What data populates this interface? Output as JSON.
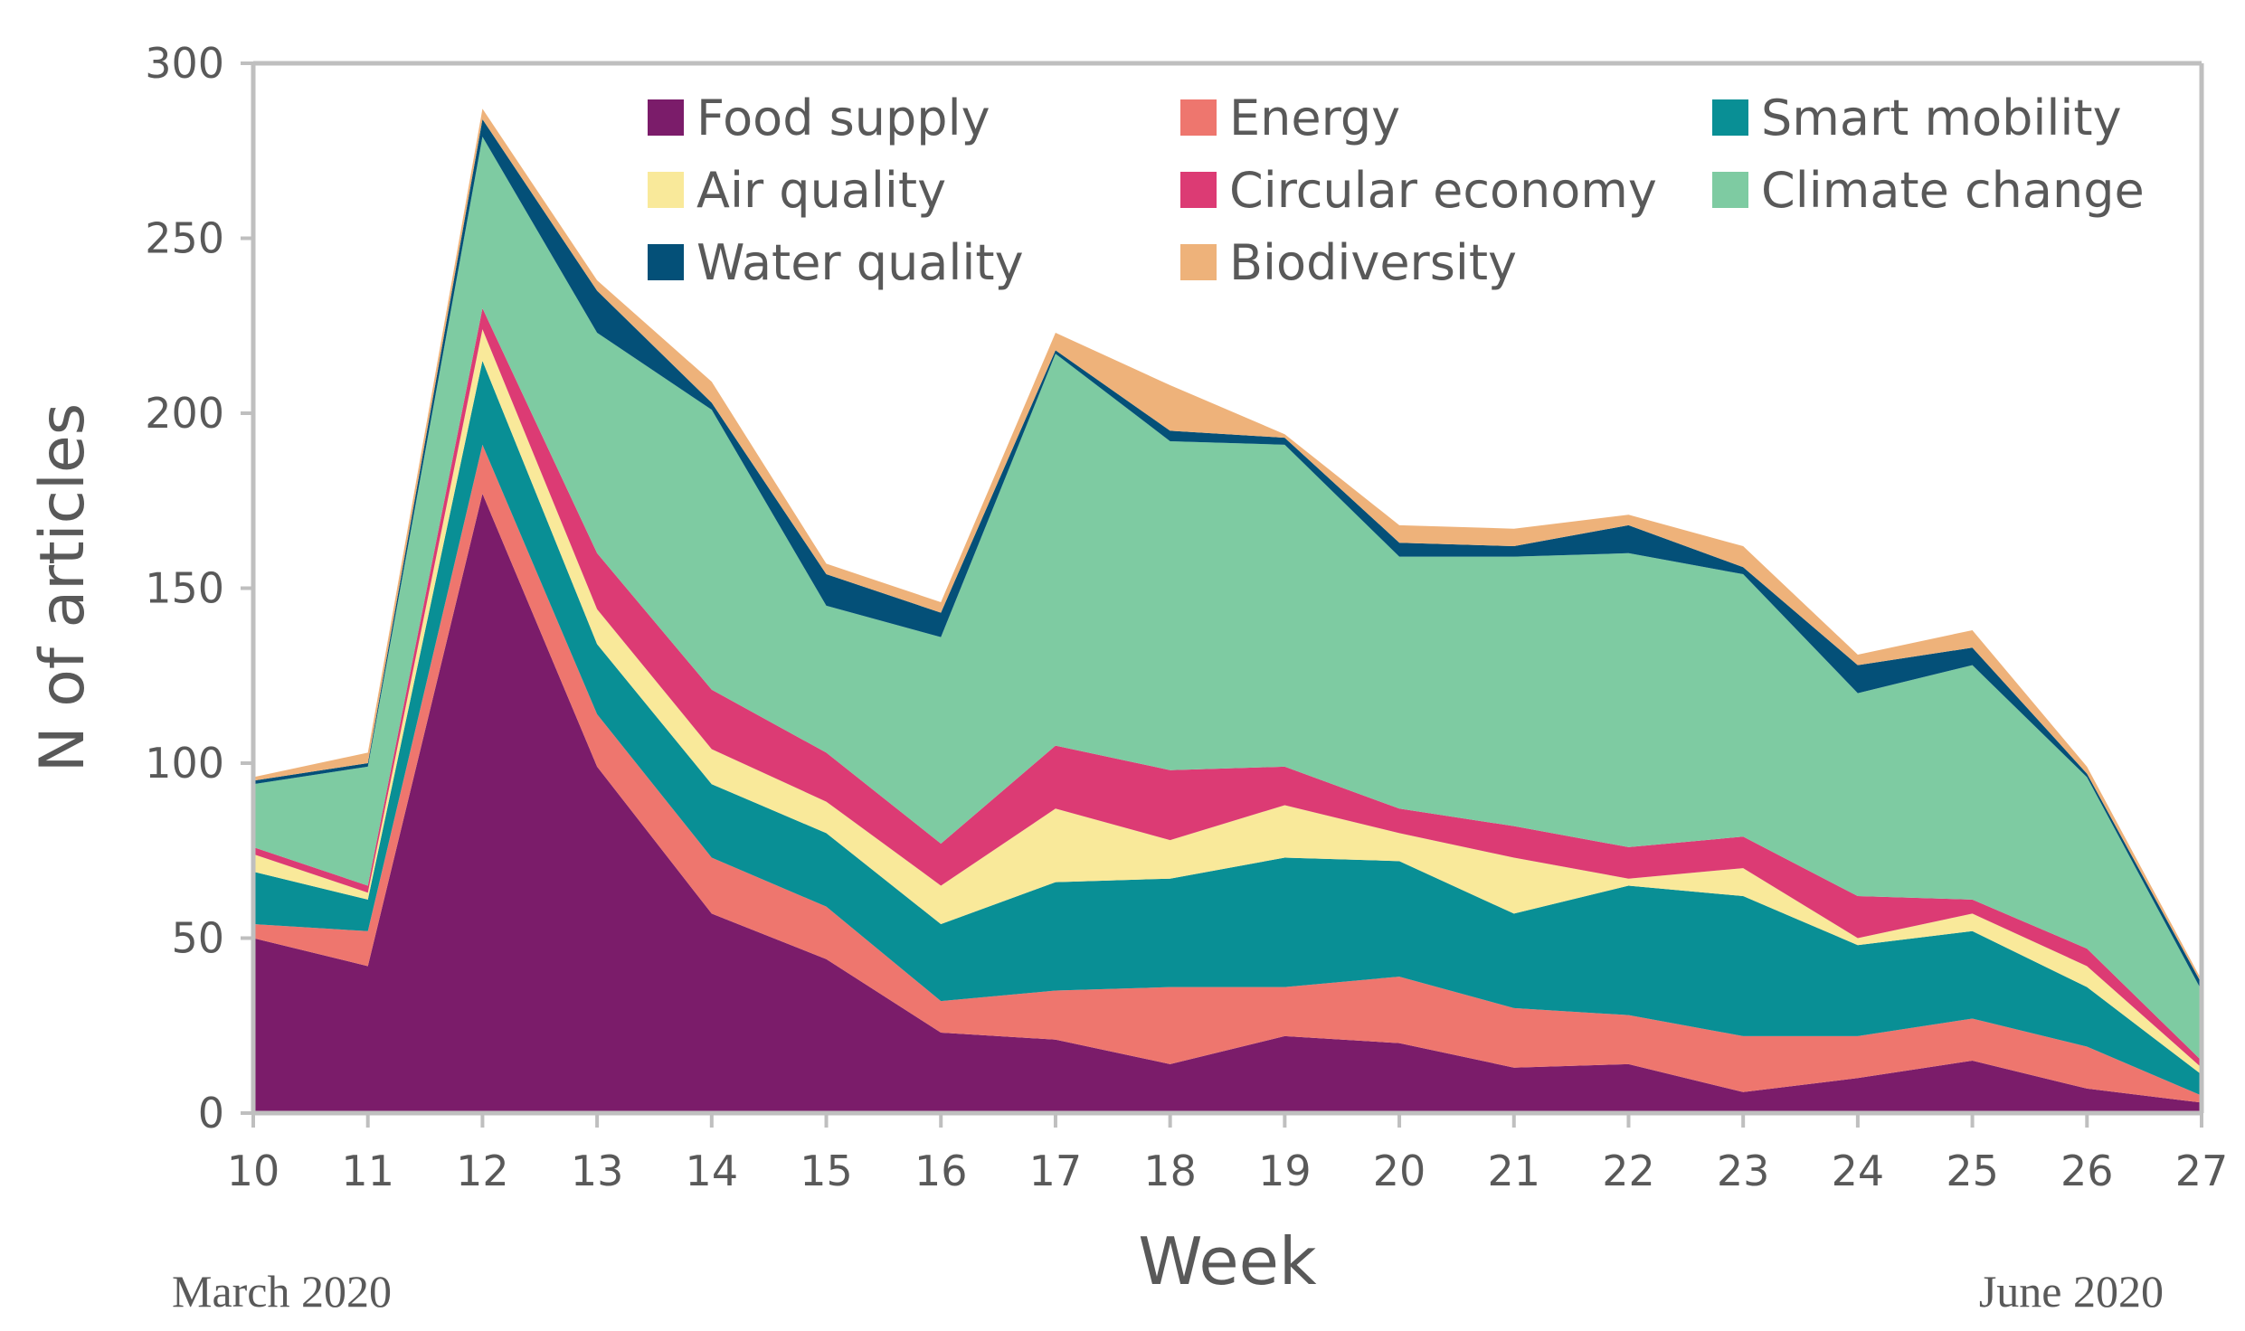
{
  "chart_data": {
    "type": "area",
    "stacked": true,
    "xlabel": "Week",
    "ylabel": "N of articles",
    "ylim": [
      0,
      300
    ],
    "yticks": [
      0,
      50,
      100,
      150,
      200,
      250,
      300
    ],
    "x": [
      10,
      11,
      12,
      13,
      14,
      15,
      16,
      17,
      18,
      19,
      20,
      21,
      22,
      23,
      24,
      25,
      26,
      27
    ],
    "annotations": {
      "start": "March 2020",
      "end": "June 2020"
    },
    "legend_position": "top",
    "series": [
      {
        "name": "Food supply",
        "color": "#7b1c6a",
        "values": [
          50,
          42,
          177,
          99,
          57,
          44,
          23,
          21,
          14,
          22,
          20,
          13,
          14,
          6,
          10,
          15,
          7,
          3
        ]
      },
      {
        "name": "Energy",
        "color": "#ee766e",
        "values": [
          4,
          10,
          14,
          15,
          16,
          15,
          9,
          14,
          22,
          14,
          19,
          17,
          14,
          16,
          12,
          12,
          12,
          2
        ]
      },
      {
        "name": "Smart mobility",
        "color": "#098f95",
        "values": [
          15,
          9,
          24,
          20,
          21,
          21,
          22,
          31,
          31,
          37,
          33,
          27,
          37,
          40,
          26,
          25,
          17,
          6
        ]
      },
      {
        "name": "Air quality",
        "color": "#f9e99a",
        "values": [
          5,
          2,
          9,
          10,
          10,
          9,
          11,
          21,
          11,
          15,
          8,
          16,
          2,
          8,
          2,
          5,
          6,
          2
        ]
      },
      {
        "name": "Circular economy",
        "color": "#dc3b74",
        "values": [
          2,
          2,
          6,
          16,
          17,
          14,
          12,
          18,
          20,
          11,
          7,
          9,
          9,
          9,
          12,
          4,
          5,
          2
        ]
      },
      {
        "name": "Climate change",
        "color": "#7ecba2",
        "values": [
          18,
          34,
          49,
          63,
          80,
          42,
          59,
          112,
          94,
          92,
          72,
          77,
          84,
          75,
          58,
          67,
          49,
          20
        ]
      },
      {
        "name": "Water quality",
        "color": "#045078",
        "values": [
          1,
          1,
          5,
          12,
          2,
          9,
          7,
          1,
          3,
          2,
          4,
          3,
          8,
          2,
          8,
          5,
          1,
          2
        ]
      },
      {
        "name": "Biodiversity",
        "color": "#eeb27a",
        "values": [
          1,
          3,
          3,
          3,
          6,
          3,
          3,
          5,
          13,
          1,
          5,
          5,
          3,
          6,
          3,
          5,
          2,
          1
        ]
      }
    ]
  }
}
